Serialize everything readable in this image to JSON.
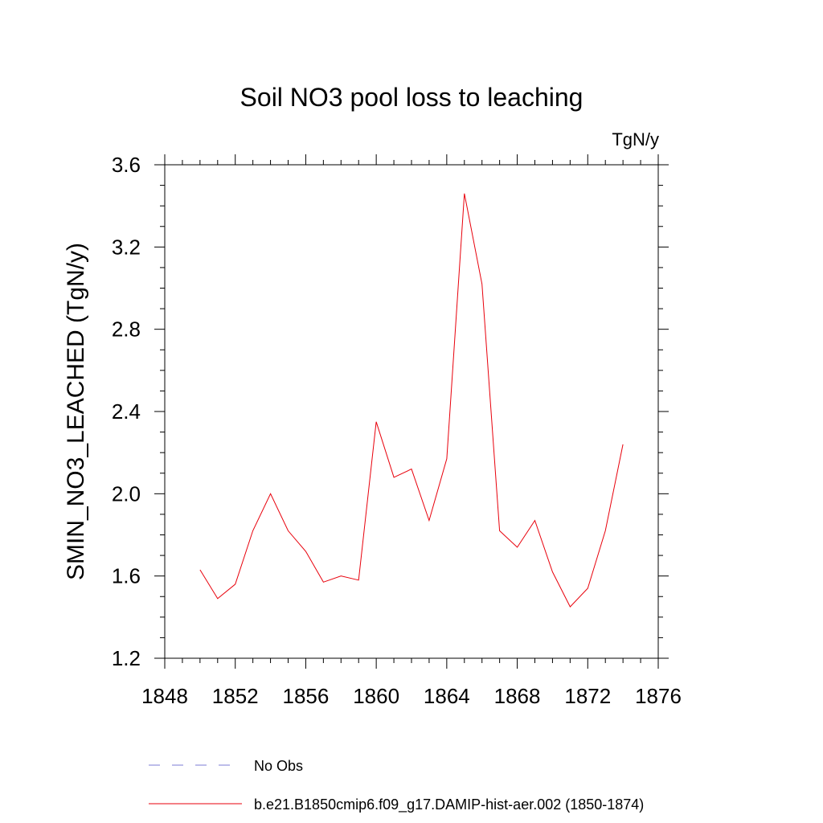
{
  "chart_data": {
    "type": "line",
    "title": "Soil NO3 pool loss to leaching",
    "units_label": "TgN/y",
    "ylabel": "SMIN_NO3_LEACHED  (TgN/y)",
    "xlabel": "",
    "xlim": [
      1848,
      1876
    ],
    "ylim": [
      1.2,
      3.6
    ],
    "xticks": [
      1848,
      1852,
      1856,
      1860,
      1864,
      1868,
      1872,
      1876
    ],
    "yticks": [
      1.2,
      1.6,
      2.0,
      2.4,
      2.8,
      3.2,
      3.6
    ],
    "ytick_labels": [
      "1.2",
      "1.6",
      "2.0",
      "2.4",
      "2.8",
      "3.2",
      "3.6"
    ],
    "grid": false,
    "legend_position": "bottom",
    "series": [
      {
        "name": "b.e21.B1850cmip6.f09_g17.DAMIP-hist-aer.002 (1850-1874)",
        "color": "#e8000b",
        "x": [
          1850,
          1851,
          1852,
          1853,
          1854,
          1855,
          1856,
          1857,
          1858,
          1859,
          1860,
          1861,
          1862,
          1863,
          1864,
          1865,
          1866,
          1867,
          1868,
          1869,
          1870,
          1871,
          1872,
          1873,
          1874
        ],
        "y": [
          1.63,
          1.49,
          1.56,
          1.82,
          2.0,
          1.82,
          1.72,
          1.57,
          1.6,
          1.58,
          2.35,
          2.08,
          2.12,
          1.87,
          2.17,
          3.46,
          3.02,
          1.82,
          1.74,
          1.87,
          1.62,
          1.45,
          1.54,
          1.82,
          2.24
        ]
      }
    ],
    "legend": [
      {
        "label": "No Obs",
        "color": "#7b7bd6",
        "style": "dashed"
      },
      {
        "label": "b.e21.B1850cmip6.f09_g17.DAMIP-hist-aer.002 (1850-1874)",
        "color": "#e8000b",
        "style": "solid"
      }
    ]
  }
}
